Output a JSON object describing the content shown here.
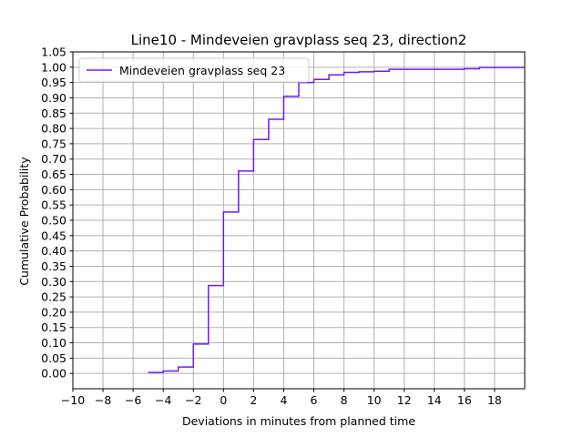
{
  "chart_data": {
    "type": "line",
    "step": "post",
    "title": "Line10 - Mindeveien gravplass seq 23, direction2",
    "xlabel": "Deviations in minutes from planned time",
    "ylabel": "Cumulative Probability",
    "xlim": [
      -10,
      20
    ],
    "ylim": [
      -0.05,
      1.05
    ],
    "xticks": [
      -10,
      -8,
      -6,
      -4,
      -2,
      0,
      2,
      4,
      6,
      8,
      10,
      12,
      14,
      16,
      18
    ],
    "xtick_labels": [
      "−10",
      "−8",
      "−6",
      "−4",
      "−2",
      "0",
      "2",
      "4",
      "6",
      "8",
      "10",
      "12",
      "14",
      "16",
      "18"
    ],
    "yticks": [
      0.0,
      0.05,
      0.1,
      0.15,
      0.2,
      0.25,
      0.3,
      0.35,
      0.4,
      0.45,
      0.5,
      0.55,
      0.6,
      0.65,
      0.7,
      0.75,
      0.8,
      0.85,
      0.9,
      0.95,
      1.0,
      1.05
    ],
    "ytick_labels": [
      "0.00",
      "0.05",
      "0.10",
      "0.15",
      "0.20",
      "0.25",
      "0.30",
      "0.35",
      "0.40",
      "0.45",
      "0.50",
      "0.55",
      "0.60",
      "0.65",
      "0.70",
      "0.75",
      "0.80",
      "0.85",
      "0.90",
      "0.95",
      "1.00",
      "1.05"
    ],
    "grid": true,
    "legend": {
      "placement": "top-left"
    },
    "series": [
      {
        "name": "Mindeveien gravplass seq 23",
        "color": "#6a1bff",
        "x": [
          -5,
          -4,
          -3,
          -2,
          -1,
          0,
          1,
          2,
          3,
          4,
          5,
          6,
          7,
          8,
          9,
          10,
          11,
          16,
          17,
          20
        ],
        "y": [
          0.003,
          0.008,
          0.021,
          0.096,
          0.287,
          0.527,
          0.661,
          0.764,
          0.83,
          0.905,
          0.95,
          0.96,
          0.975,
          0.983,
          0.985,
          0.987,
          0.993,
          0.995,
          0.999,
          0.999
        ]
      }
    ]
  }
}
